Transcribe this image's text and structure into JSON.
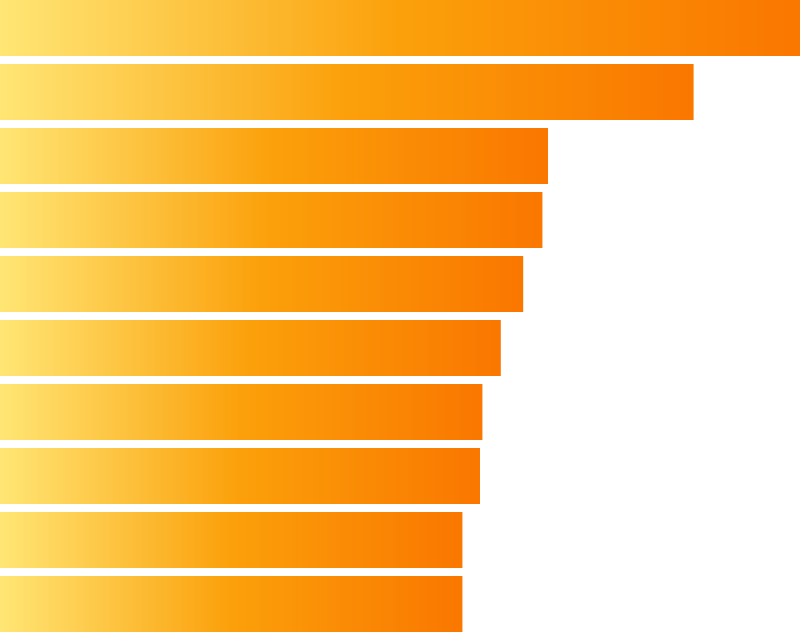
{
  "chart_data": {
    "type": "bar",
    "orientation": "horizontal",
    "values": [
      100,
      86.7,
      68.5,
      67.8,
      65.4,
      62.6,
      60.3,
      60.0,
      57.8,
      57.8
    ],
    "xlim": [
      0,
      100
    ],
    "grid": false,
    "legend": "none",
    "title": "",
    "xlabel": "",
    "ylabel": ""
  },
  "colors": {
    "bar_gradient_start": "#ffe675",
    "bar_gradient_mid": "#fba00a",
    "bar_gradient_end": "#fa7700",
    "background": "#ffffff"
  }
}
